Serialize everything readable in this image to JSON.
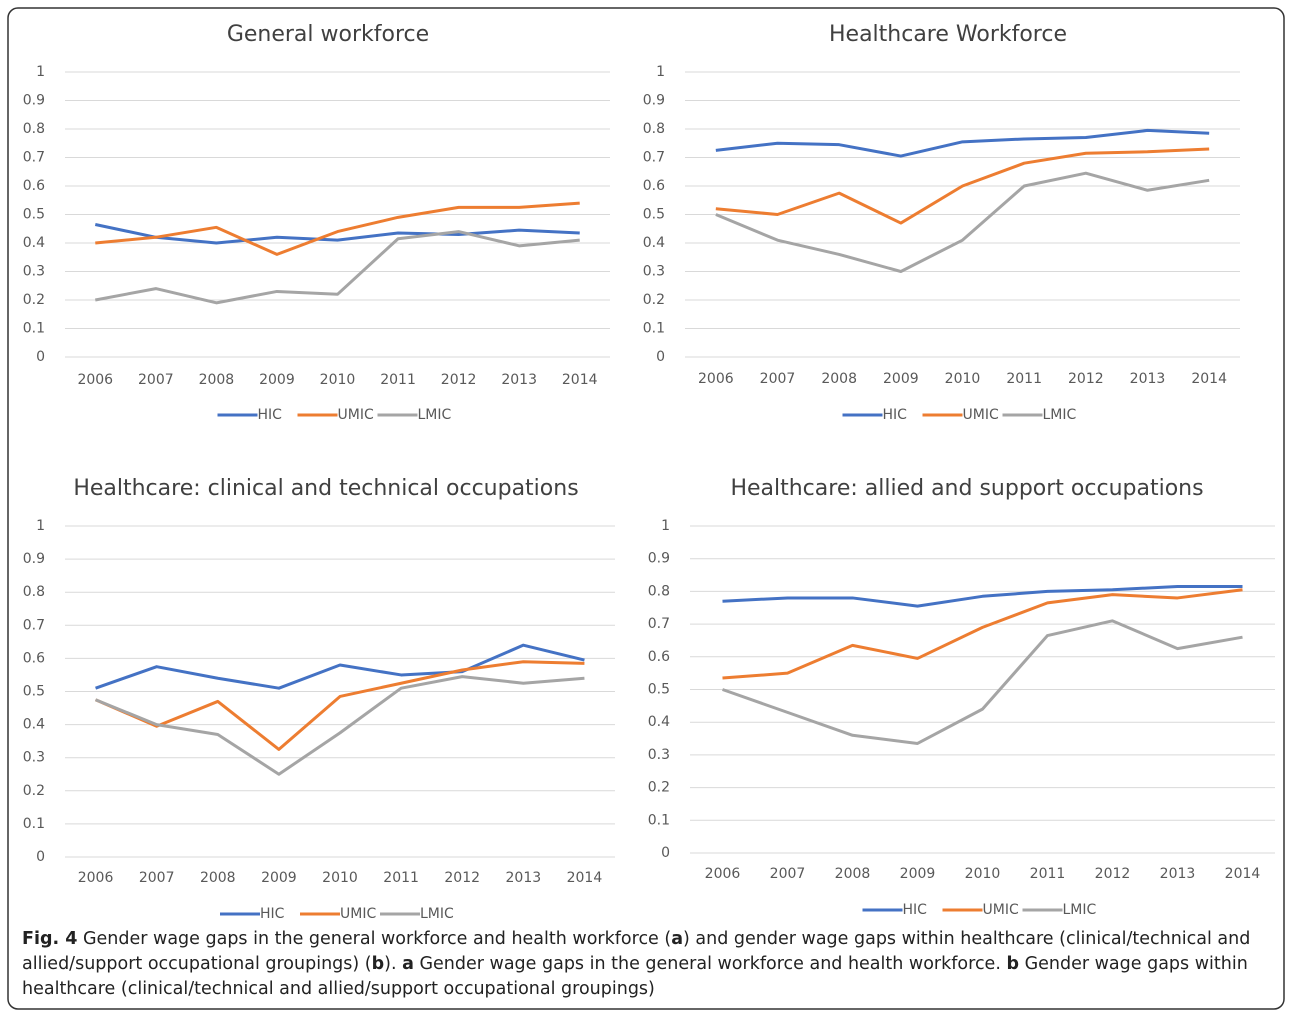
{
  "chart_data": [
    {
      "type": "line",
      "title": "General workforce",
      "categories": [
        "2006",
        "2007",
        "2008",
        "2009",
        "2010",
        "2011",
        "2012",
        "2013",
        "2014"
      ],
      "ylim": [
        0,
        1
      ],
      "yticks": [
        0,
        0.1,
        0.2,
        0.3,
        0.4,
        0.5,
        0.6,
        0.7,
        0.8,
        0.9,
        1
      ],
      "grid": true,
      "legend": "bottom",
      "series": [
        {
          "name": "HIC",
          "color": "#4472c4",
          "values": [
            0.465,
            0.42,
            0.4,
            0.42,
            0.41,
            0.435,
            0.43,
            0.445,
            0.435
          ]
        },
        {
          "name": "UMIC",
          "color": "#ed7d31",
          "values": [
            0.4,
            0.42,
            0.455,
            0.36,
            0.44,
            0.49,
            0.525,
            0.525,
            0.54
          ]
        },
        {
          "name": "LMIC",
          "color": "#a5a5a5",
          "values": [
            0.2,
            0.24,
            0.19,
            0.23,
            0.22,
            0.415,
            0.44,
            0.39,
            0.41
          ]
        }
      ]
    },
    {
      "type": "line",
      "title": "Healthcare Workforce",
      "categories": [
        "2006",
        "2007",
        "2008",
        "2009",
        "2010",
        "2011",
        "2012",
        "2013",
        "2014"
      ],
      "ylim": [
        0,
        1
      ],
      "yticks": [
        0,
        0.1,
        0.2,
        0.3,
        0.4,
        0.5,
        0.6,
        0.7,
        0.8,
        0.9,
        1
      ],
      "grid": true,
      "legend": "bottom",
      "series": [
        {
          "name": "HIC",
          "color": "#4472c4",
          "values": [
            0.725,
            0.75,
            0.745,
            0.705,
            0.755,
            0.765,
            0.77,
            0.795,
            0.785
          ]
        },
        {
          "name": "UMIC",
          "color": "#ed7d31",
          "values": [
            0.52,
            0.5,
            0.575,
            0.47,
            0.6,
            0.68,
            0.715,
            0.72,
            0.73
          ]
        },
        {
          "name": "LMIC",
          "color": "#a5a5a5",
          "values": [
            0.5,
            0.41,
            0.36,
            0.3,
            0.41,
            0.6,
            0.645,
            0.585,
            0.62
          ]
        }
      ]
    },
    {
      "type": "line",
      "title": "Healthcare: clinical and technical occupations",
      "categories": [
        "2006",
        "2007",
        "2008",
        "2009",
        "2010",
        "2011",
        "2012",
        "2013",
        "2014"
      ],
      "ylim": [
        0,
        1
      ],
      "yticks": [
        0,
        0.1,
        0.2,
        0.3,
        0.4,
        0.5,
        0.6,
        0.7,
        0.8,
        0.9,
        1
      ],
      "grid": true,
      "legend": "bottom",
      "series": [
        {
          "name": "HIC",
          "color": "#4472c4",
          "values": [
            0.51,
            0.575,
            0.54,
            0.51,
            0.58,
            0.55,
            0.56,
            0.64,
            0.595
          ]
        },
        {
          "name": "UMIC",
          "color": "#ed7d31",
          "values": [
            0.475,
            0.395,
            0.47,
            0.325,
            0.485,
            0.525,
            0.565,
            0.59,
            0.585
          ]
        },
        {
          "name": "LMIC",
          "color": "#a5a5a5",
          "values": [
            0.475,
            0.4,
            0.37,
            0.25,
            0.375,
            0.51,
            0.545,
            0.525,
            0.54
          ]
        }
      ]
    },
    {
      "type": "line",
      "title": "Healthcare: allied and support occupations",
      "categories": [
        "2006",
        "2007",
        "2008",
        "2009",
        "2010",
        "2011",
        "2012",
        "2013",
        "2014"
      ],
      "ylim": [
        0,
        1
      ],
      "yticks": [
        0,
        0.1,
        0.2,
        0.3,
        0.4,
        0.5,
        0.6,
        0.7,
        0.8,
        0.9,
        1
      ],
      "grid": true,
      "legend": "bottom",
      "series": [
        {
          "name": "HIC",
          "color": "#4472c4",
          "values": [
            0.77,
            0.78,
            0.78,
            0.755,
            0.785,
            0.8,
            0.805,
            0.815,
            0.815
          ]
        },
        {
          "name": "UMIC",
          "color": "#ed7d31",
          "values": [
            0.535,
            0.55,
            0.635,
            0.595,
            0.69,
            0.765,
            0.79,
            0.78,
            0.805
          ]
        },
        {
          "name": "LMIC",
          "color": "#a5a5a5",
          "values": [
            0.5,
            0.43,
            0.36,
            0.335,
            0.44,
            0.665,
            0.71,
            0.625,
            0.66
          ]
        }
      ]
    }
  ],
  "caption": [
    {
      "text": "Fig. 4",
      "bold": true
    },
    {
      "text": " Gender wage gaps in the general workforce and health workforce (",
      "bold": false
    },
    {
      "text": "a",
      "bold": true
    },
    {
      "text": ") and gender wage gaps within healthcare (clinical/technical and allied/support occupational groupings) (",
      "bold": false
    },
    {
      "text": "b",
      "bold": true
    },
    {
      "text": "). ",
      "bold": false
    },
    {
      "text": "a",
      "bold": true
    },
    {
      "text": " Gender wage gaps in the general workforce and health workforce. ",
      "bold": false
    },
    {
      "text": "b",
      "bold": true
    },
    {
      "text": " Gender wage gaps within healthcare (clinical/technical and allied/support occupational groupings)",
      "bold": false
    }
  ]
}
